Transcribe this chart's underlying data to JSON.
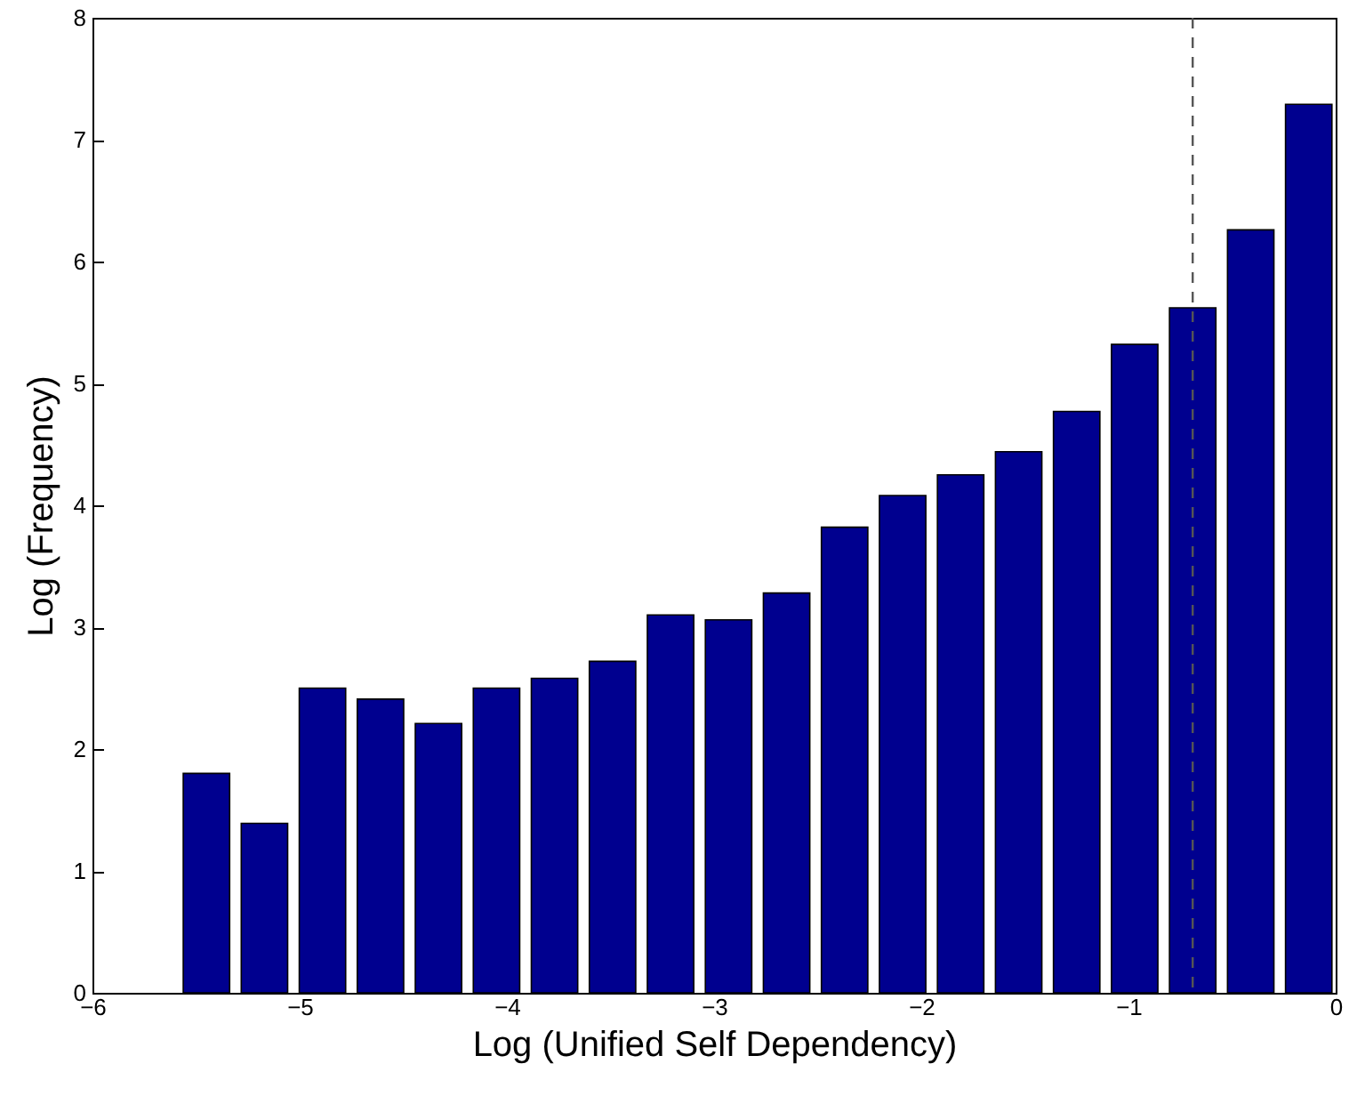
{
  "chart_data": {
    "type": "bar",
    "xlabel": "Log (Unified Self Dependency)",
    "ylabel": "Log (Frequency)",
    "x": [
      -5.45,
      -5.17,
      -4.89,
      -4.61,
      -4.33,
      -4.05,
      -3.77,
      -3.49,
      -3.21,
      -2.93,
      -2.65,
      -2.37,
      -2.09,
      -1.81,
      -1.53,
      -1.25,
      -0.97,
      -0.69,
      -0.41,
      -0.13
    ],
    "values": [
      1.8,
      1.39,
      2.5,
      2.41,
      2.21,
      2.5,
      2.58,
      2.72,
      3.1,
      3.06,
      3.28,
      3.82,
      4.08,
      4.25,
      4.44,
      4.77,
      5.32,
      5.62,
      6.26,
      7.29
    ],
    "color": "#00008f",
    "xlim": [
      -6,
      0
    ],
    "xticks": [
      -6,
      -5,
      -4,
      -3,
      -2,
      -1,
      0
    ],
    "ylim": [
      0,
      8
    ],
    "yticks": [
      0,
      1,
      2,
      3,
      4,
      5,
      6,
      7,
      8
    ],
    "grid": false,
    "ref_lines": [
      {
        "axis": "x",
        "value": -0.69,
        "color": "#555555",
        "line_style": "dashed"
      }
    ]
  }
}
